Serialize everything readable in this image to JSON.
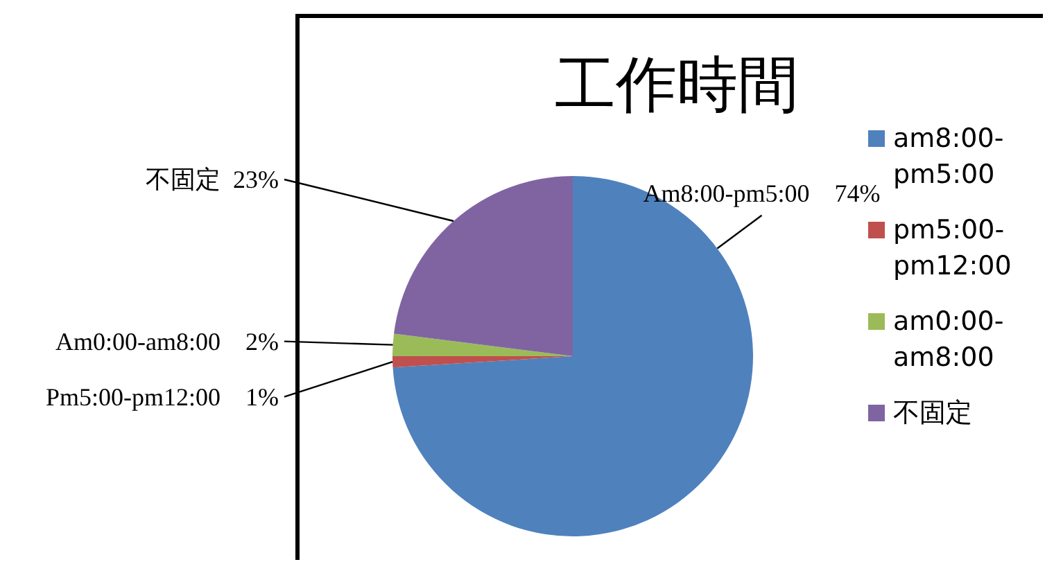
{
  "chart_data": {
    "type": "pie",
    "title": "工作時間",
    "categories": [
      "am8:00-pm5:00",
      "pm5:00-pm12:00",
      "am0:00-am8:00",
      "不固定"
    ],
    "values": [
      74,
      1,
      2,
      23
    ],
    "colors": [
      "#4f81bd",
      "#c0504d",
      "#9bbb59",
      "#8064a2"
    ],
    "value_labels": [
      "Am8:00-pm5:00    74%",
      "Pm5:00-pm12:00    1%",
      "Am0:00-am8:00    2%",
      "不固定  23%"
    ],
    "legend": "right"
  }
}
